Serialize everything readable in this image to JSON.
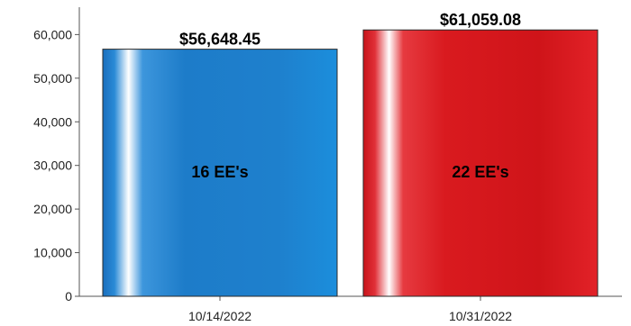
{
  "chart_data": {
    "type": "bar",
    "categories": [
      "10/14/2022",
      "10/31/2022"
    ],
    "values": [
      56648.45,
      61059.08
    ],
    "value_labels": [
      "$56,648.45",
      "$61,059.08"
    ],
    "inner_labels": [
      "16 EE's",
      "22 EE's"
    ],
    "colors": [
      "#1d7cc9",
      "#d91a1f"
    ],
    "ylim": [
      0,
      64000
    ],
    "yticks": [
      0,
      10000,
      20000,
      30000,
      40000,
      50000,
      60000
    ],
    "ytick_labels": [
      "0",
      "10,000",
      "20,000",
      "30,000",
      "40,000",
      "50,000",
      "60,000"
    ],
    "title": "",
    "xlabel": "",
    "ylabel": "",
    "grid": false,
    "legend": "none"
  }
}
